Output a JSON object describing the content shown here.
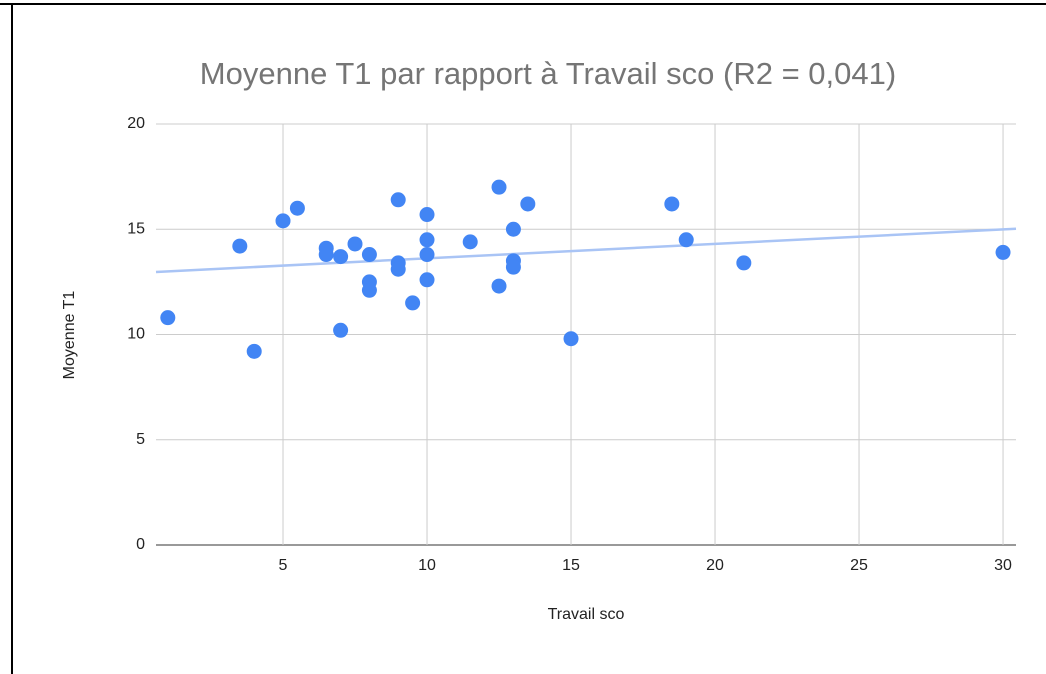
{
  "chart_data": {
    "type": "scatter",
    "title": "Moyenne T1 par rapport à Travail sco (R2 = 0,041)",
    "x_label": "Travail sco",
    "y_label": "Moyenne T1",
    "color": "#4285f4",
    "trendline_color": "#a9c4f5",
    "x": [
      1,
      3.5,
      4,
      5,
      5.5,
      6.5,
      6.5,
      7,
      7,
      7.5,
      8,
      8,
      8,
      9,
      9,
      9,
      9.5,
      10,
      10,
      10,
      10,
      11.5,
      12.5,
      12.5,
      13,
      13,
      13,
      13.5,
      15,
      18.5,
      19,
      21,
      30
    ],
    "values": [
      10.8,
      14.2,
      9.2,
      15.4,
      16.0,
      14.1,
      13.8,
      13.7,
      10.2,
      14.3,
      13.8,
      12.5,
      12.1,
      16.4,
      13.4,
      13.1,
      11.5,
      15.7,
      14.5,
      13.8,
      12.6,
      14.4,
      17.0,
      12.3,
      15.0,
      13.5,
      13.2,
      16.2,
      9.8,
      16.2,
      14.5,
      13.4,
      13.9
    ],
    "xlim": [
      0.59,
      30.45
    ],
    "xticks": [
      5,
      10,
      15,
      20,
      25,
      30
    ],
    "ylim": [
      0,
      20
    ],
    "yticks": [
      0,
      5,
      10,
      15,
      20
    ],
    "grid": true
  }
}
